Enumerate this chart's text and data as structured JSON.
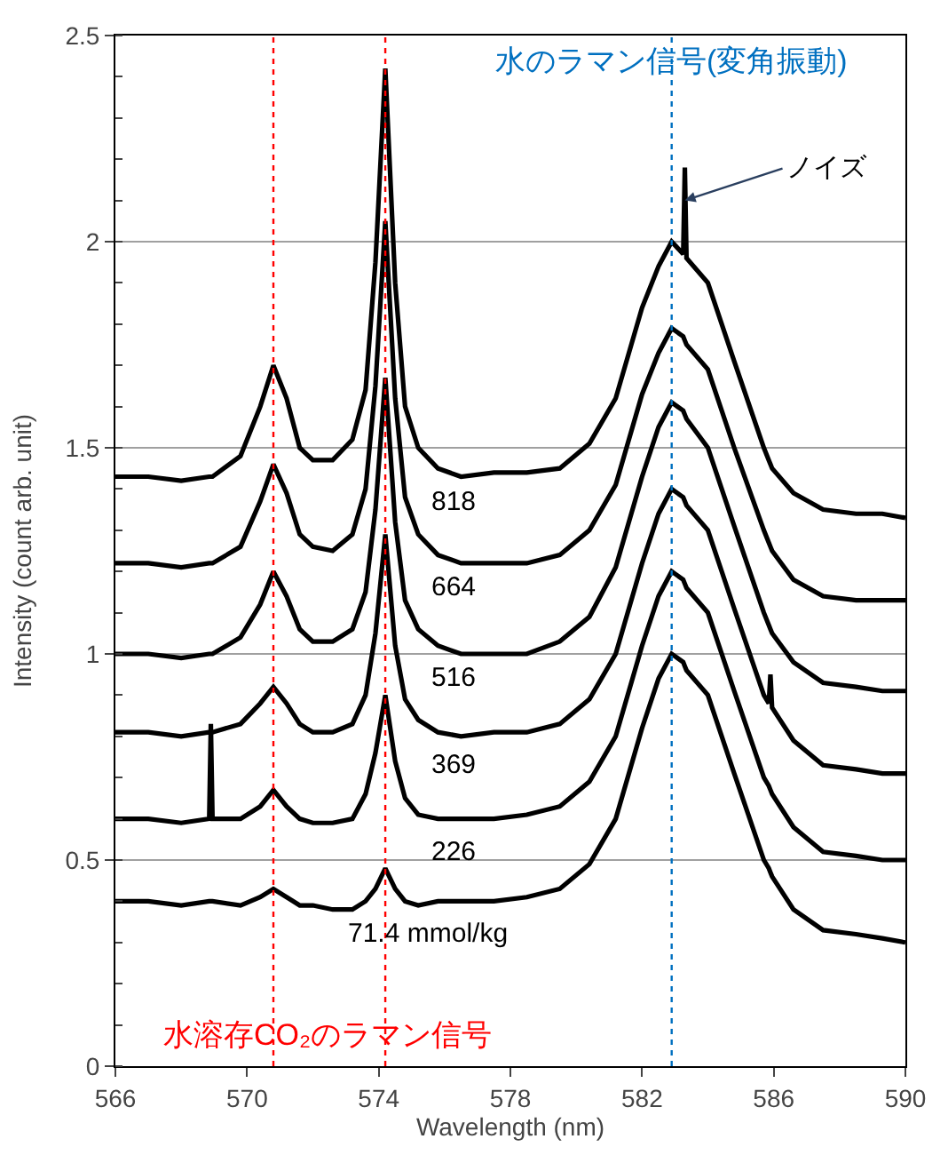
{
  "chart_data": {
    "type": "line",
    "xlabel": "Wavelength (nm)",
    "ylabel": "Intensity (count arb. unit)",
    "xlim": [
      566,
      590
    ],
    "xticks": [
      566,
      570,
      574,
      578,
      582,
      586,
      590
    ],
    "ylim": [
      0,
      2.5
    ],
    "yticks": [
      0,
      0.5,
      1,
      1.5,
      2,
      2.5
    ],
    "grid": "y",
    "legend": false,
    "line_style": "solid",
    "marker": "none",
    "x": [
      566,
      567,
      568,
      568.85,
      568.9,
      568.95,
      569.8,
      570.4,
      570.8,
      571.2,
      571.6,
      572,
      572.6,
      573.2,
      573.6,
      573.9,
      574.2,
      574.5,
      574.8,
      575.2,
      575.8,
      576.5,
      577.5,
      578.5,
      579.5,
      580.4,
      581.2,
      582,
      582.5,
      582.9,
      583.25,
      583.3,
      583.35,
      584,
      584.8,
      585.7,
      585.85,
      585.9,
      585.95,
      586.6,
      587.5,
      588.5,
      589.3,
      590
    ],
    "series": [
      {
        "name": "818",
        "color": "#000000",
        "values": [
          1.43,
          1.43,
          1.42,
          1.43,
          1.43,
          1.43,
          1.48,
          1.6,
          1.7,
          1.62,
          1.5,
          1.47,
          1.47,
          1.52,
          1.64,
          1.95,
          2.42,
          1.9,
          1.6,
          1.5,
          1.45,
          1.43,
          1.44,
          1.44,
          1.45,
          1.51,
          1.62,
          1.84,
          1.94,
          2.0,
          1.97,
          2.18,
          1.96,
          1.9,
          1.71,
          1.5,
          1.47,
          1.46,
          1.45,
          1.39,
          1.35,
          1.34,
          1.34,
          1.33
        ]
      },
      {
        "name": "664",
        "color": "#000000",
        "values": [
          1.22,
          1.22,
          1.21,
          1.22,
          1.22,
          1.22,
          1.26,
          1.37,
          1.46,
          1.39,
          1.29,
          1.26,
          1.25,
          1.29,
          1.4,
          1.65,
          2.05,
          1.62,
          1.38,
          1.29,
          1.24,
          1.22,
          1.22,
          1.22,
          1.24,
          1.3,
          1.41,
          1.63,
          1.73,
          1.79,
          1.77,
          1.76,
          1.75,
          1.69,
          1.5,
          1.3,
          1.27,
          1.26,
          1.25,
          1.18,
          1.14,
          1.13,
          1.13,
          1.13
        ]
      },
      {
        "name": "516",
        "color": "#000000",
        "values": [
          1.0,
          1.0,
          0.99,
          1.0,
          1.0,
          1.0,
          1.04,
          1.12,
          1.2,
          1.14,
          1.06,
          1.03,
          1.03,
          1.06,
          1.15,
          1.35,
          1.67,
          1.32,
          1.13,
          1.06,
          1.02,
          1.0,
          1.0,
          1.0,
          1.03,
          1.09,
          1.21,
          1.43,
          1.55,
          1.61,
          1.59,
          1.58,
          1.57,
          1.5,
          1.31,
          1.1,
          1.07,
          1.06,
          1.05,
          0.98,
          0.93,
          0.92,
          0.91,
          0.91
        ]
      },
      {
        "name": "369",
        "color": "#000000",
        "values": [
          0.81,
          0.81,
          0.8,
          0.81,
          0.81,
          0.81,
          0.83,
          0.88,
          0.92,
          0.88,
          0.83,
          0.81,
          0.81,
          0.83,
          0.9,
          1.05,
          1.29,
          1.02,
          0.89,
          0.84,
          0.81,
          0.8,
          0.81,
          0.81,
          0.83,
          0.89,
          1.0,
          1.22,
          1.34,
          1.4,
          1.38,
          1.37,
          1.36,
          1.3,
          1.11,
          0.9,
          0.88,
          0.95,
          0.87,
          0.79,
          0.73,
          0.72,
          0.71,
          0.71
        ]
      },
      {
        "name": "226",
        "color": "#000000",
        "values": [
          0.6,
          0.6,
          0.59,
          0.6,
          0.83,
          0.6,
          0.6,
          0.63,
          0.67,
          0.63,
          0.6,
          0.59,
          0.59,
          0.6,
          0.66,
          0.76,
          0.9,
          0.74,
          0.65,
          0.61,
          0.6,
          0.6,
          0.6,
          0.61,
          0.63,
          0.69,
          0.8,
          1.02,
          1.14,
          1.2,
          1.18,
          1.17,
          1.16,
          1.1,
          0.91,
          0.7,
          0.68,
          0.67,
          0.66,
          0.58,
          0.52,
          0.51,
          0.5,
          0.5
        ]
      },
      {
        "name": "71.4 mmol/kg",
        "color": "#000000",
        "values": [
          0.4,
          0.4,
          0.39,
          0.4,
          0.4,
          0.4,
          0.39,
          0.41,
          0.43,
          0.41,
          0.39,
          0.39,
          0.38,
          0.38,
          0.4,
          0.43,
          0.48,
          0.43,
          0.4,
          0.39,
          0.4,
          0.4,
          0.4,
          0.41,
          0.43,
          0.49,
          0.6,
          0.82,
          0.94,
          1.0,
          0.98,
          0.97,
          0.96,
          0.9,
          0.71,
          0.5,
          0.48,
          0.47,
          0.46,
          0.38,
          0.33,
          0.32,
          0.31,
          0.3
        ]
      }
    ],
    "ref_lines": [
      {
        "axis": "x",
        "value": 570.8,
        "label": "水溶存CO₂のラマン信号",
        "color": "#ff0000",
        "line_style": "dotted"
      },
      {
        "axis": "x",
        "value": 574.2,
        "color": "#ff0000",
        "line_style": "dotted"
      },
      {
        "axis": "x",
        "value": 582.9,
        "label": "水のラマン信号(変角振動)",
        "color": "#0070c0",
        "line_style": "dotted"
      }
    ],
    "annotations": [
      {
        "text": "ノイズ",
        "x": 583.3,
        "y": 2.1
      }
    ]
  }
}
